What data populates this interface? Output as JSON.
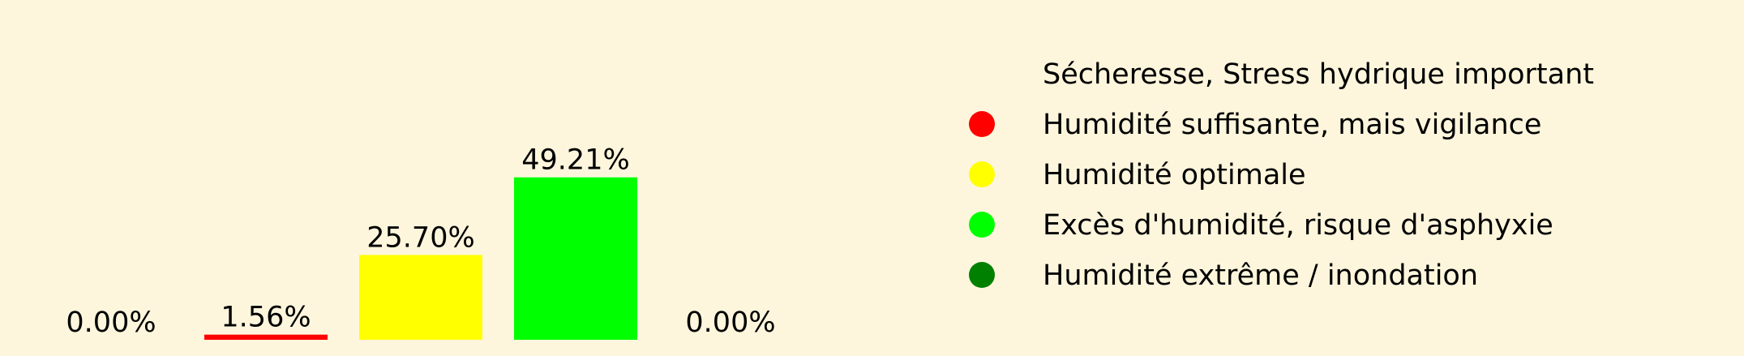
{
  "background": "#fdf6dc",
  "chart_data": {
    "type": "bar",
    "categories": [
      "Sécheresse, Stress hydrique important",
      "Humidité suffisante, mais vigilance",
      "Humidité optimale",
      "Excès d'humidité, risque d'asphyxie",
      "Humidité extrême / inondation"
    ],
    "values": [
      0.0,
      1.56,
      25.7,
      49.21,
      0.0
    ],
    "value_labels": [
      "0.00%",
      "1.56%",
      "25.70%",
      "49.21%",
      "0.00%"
    ],
    "colors": [
      "#ff00ff",
      "#ff0000",
      "#ffff00",
      "#00ff00",
      "#008000"
    ],
    "legend": {
      "placement": "right",
      "entries": [
        {
          "label": "Sécheresse, Stress hydrique important",
          "color": "#fdf6dc"
        },
        {
          "label": "Humidité suffisante, mais vigilance",
          "color": "#ff0000"
        },
        {
          "label": "Humidité optimale",
          "color": "#ffff00"
        },
        {
          "label": "Excès d'humidité, risque d'asphyxie",
          "color": "#00ff00"
        },
        {
          "label": "Humidité extrême / inondation",
          "color": "#008000"
        }
      ]
    },
    "ylim": [
      0,
      50
    ],
    "grid": false,
    "axes_visible": false,
    "title": "",
    "xlabel": "",
    "ylabel": ""
  }
}
